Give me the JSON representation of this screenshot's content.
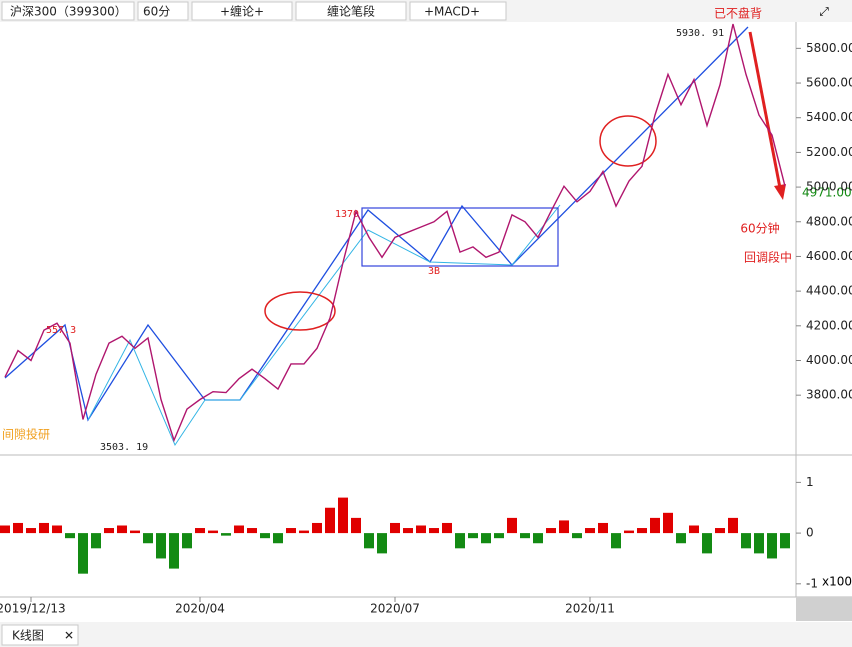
{
  "toolbar": [
    "沪深300（399300）",
    "60分",
    "+缠论+",
    "缠论笔段",
    "+MACD+"
  ],
  "tabs": [
    "K线图"
  ],
  "chart_data": [
    {
      "type": "line",
      "color": "#b0166e",
      "categories": [
        null,
        null,
        "2019/12/13",
        null,
        null,
        null,
        null,
        null,
        null,
        null,
        null,
        null,
        null,
        null,
        null,
        "2020/04",
        null,
        null,
        null,
        null,
        null,
        null,
        null,
        null,
        null,
        null,
        null,
        null,
        null,
        null,
        "2020/07",
        null,
        null,
        null,
        null,
        null,
        null,
        null,
        null,
        null,
        null,
        null,
        null,
        null,
        null,
        "2020/11",
        null,
        null,
        null,
        null,
        null,
        null,
        null,
        null,
        null,
        null,
        null,
        null,
        null,
        null,
        null
      ],
      "values": [
        3905,
        4057,
        4000,
        4175,
        4215,
        4100,
        3660,
        3920,
        4100,
        4140,
        4070,
        4130,
        3775,
        3540,
        3720,
        3775,
        3820,
        3815,
        3895,
        3950,
        3895,
        3835,
        3980,
        3980,
        4070,
        4245,
        4565,
        4860,
        4710,
        4595,
        4710,
        4740,
        4770,
        4800,
        4860,
        4625,
        4655,
        4595,
        4625,
        4840,
        4800,
        4710,
        4860,
        5005,
        4915,
        4975,
        5090,
        4890,
        5035,
        5120,
        5415,
        5650,
        5475,
        5620,
        5355,
        5590,
        5940,
        5650,
        5415,
        5300,
        5005
      ],
      "ylim": [
        3455,
        5952
      ],
      "yticks": [
        {
          "value": 3800,
          "label": "3800.00"
        },
        {
          "value": 4000,
          "label": "4000.00"
        },
        {
          "value": 4200,
          "label": "4200.00"
        },
        {
          "value": 4400,
          "label": "4400.00"
        },
        {
          "value": 4600,
          "label": "4600.00"
        },
        {
          "value": 4800,
          "label": "4800.00"
        },
        {
          "value": 5000,
          "label": "5000.00"
        },
        {
          "value": 5200,
          "label": "5200.00"
        },
        {
          "value": 5400,
          "label": "5400.00"
        },
        {
          "value": 5600,
          "label": "5600.00"
        },
        {
          "value": 5800,
          "label": "5800.00"
        }
      ],
      "last_price": "4971.00",
      "annotations": [
        "已不盘背",
        "5930. 91",
        "1370",
        "3B",
        "3503. 19",
        "60分钟",
        "回调段中",
        "间隙投研",
        "557.3"
      ]
    },
    {
      "type": "bar",
      "positive_color": "#e00000",
      "negative_color": "#138a13",
      "values": [
        0.15,
        0.2,
        0.1,
        0.2,
        0.15,
        -0.1,
        -0.8,
        -0.3,
        0.1,
        0.15,
        0.05,
        -0.2,
        -0.5,
        -0.7,
        -0.3,
        0.1,
        0.05,
        -0.05,
        0.15,
        0.1,
        -0.1,
        -0.2,
        0.1,
        0.05,
        0.2,
        0.5,
        0.7,
        0.3,
        -0.3,
        -0.4,
        0.2,
        0.1,
        0.15,
        0.1,
        0.2,
        -0.3,
        -0.1,
        -0.2,
        -0.1,
        0.3,
        -0.1,
        -0.2,
        0.1,
        0.25,
        -0.1,
        0.1,
        0.2,
        -0.3,
        0.05,
        0.1,
        0.3,
        0.4,
        -0.2,
        0.15,
        -0.4,
        0.1,
        0.3,
        -0.3,
        -0.4,
        -0.5,
        -0.3
      ],
      "ylim": [
        -1.26,
        1.54
      ],
      "yticks": [
        -1,
        0,
        1
      ],
      "unit": "x100"
    }
  ]
}
